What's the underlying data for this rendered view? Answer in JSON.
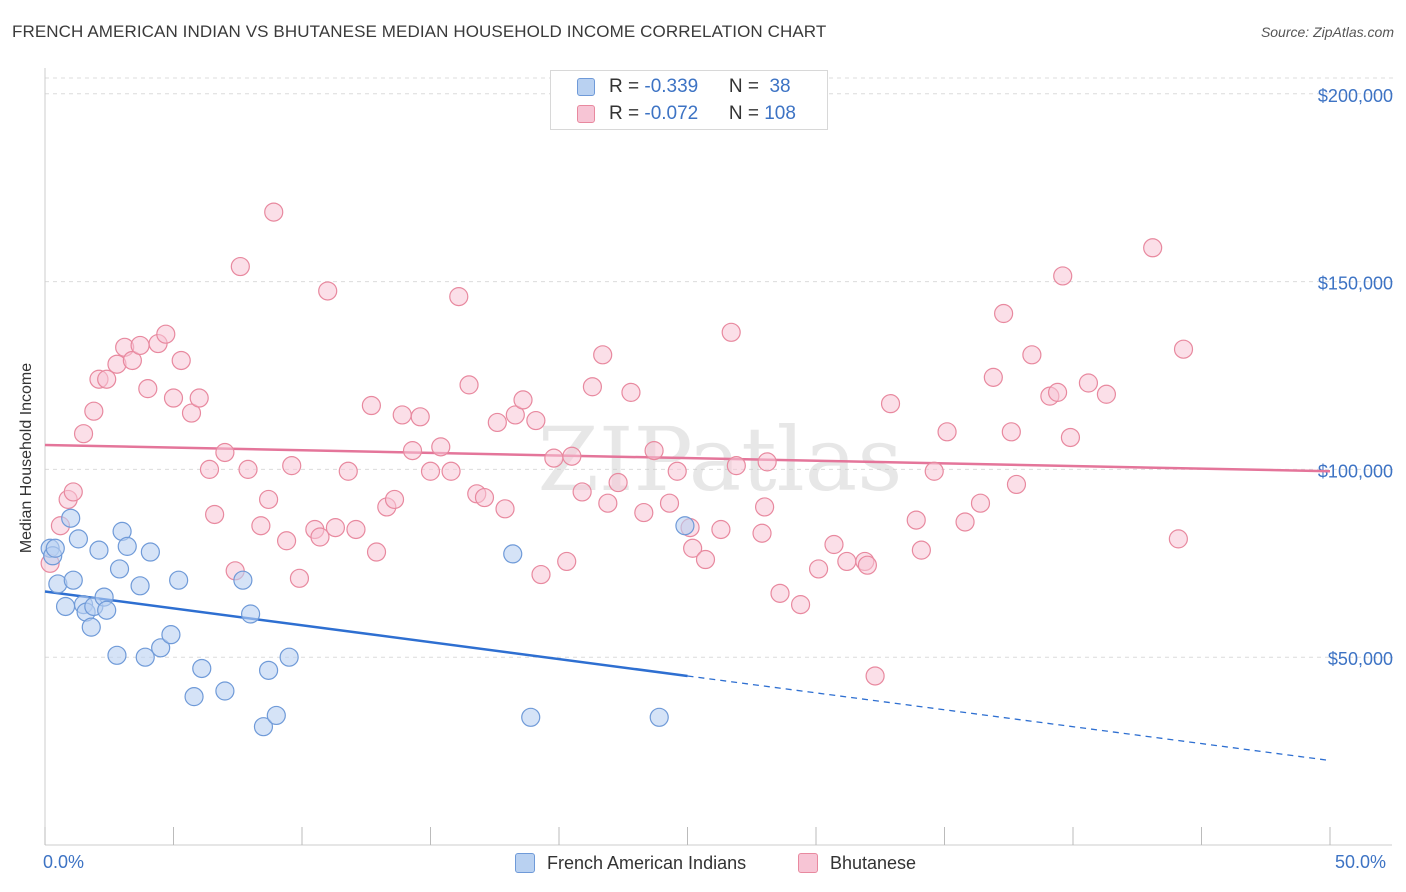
{
  "title": "FRENCH AMERICAN INDIAN VS BHUTANESE MEDIAN HOUSEHOLD INCOME CORRELATION CHART",
  "source": "Source: ZipAtlas.com",
  "watermark": "ZIPatlas",
  "colors": {
    "blue": "#3d73c4",
    "blue_fill": "#b9d1f1",
    "blue_stroke": "#6f9ad8",
    "blue_line": "#2e6fd1",
    "pink_fill": "#f7c5d5",
    "pink_stroke": "#e8899f",
    "pink_line": "#e4759a",
    "grid": "#dcdcdc"
  },
  "legend": {
    "rows": [
      {
        "r_label": "R = ",
        "r_value": "-0.339",
        "n_label": "N = ",
        "n_value": " 38"
      },
      {
        "r_label": "R = ",
        "r_value": "-0.072",
        "n_label": "N = ",
        "n_value": "108"
      }
    ]
  },
  "bottom_legend": {
    "items": [
      "French American Indians",
      "Bhutanese"
    ]
  },
  "chart_data": {
    "type": "scatter",
    "title": "FRENCH AMERICAN INDIAN VS BHUTANESE MEDIAN HOUSEHOLD INCOME CORRELATION CHART",
    "xlabel": "",
    "ylabel": "Median Household Income",
    "xlim": [
      0,
      50
    ],
    "ylim": [
      0,
      205000
    ],
    "x_tick_labels": [
      "0.0%",
      "50.0%"
    ],
    "y_ticks": [
      50000,
      100000,
      150000,
      200000
    ],
    "y_tick_labels": [
      "$50,000",
      "$100,000",
      "$150,000",
      "$200,000"
    ],
    "series": [
      {
        "name": "French American Indians",
        "r": -0.339,
        "n": 38,
        "trend": {
          "x0": 0,
          "y0": 67500,
          "x_solid_end": 25,
          "x1": 50,
          "y1": 22500
        },
        "points": [
          [
            0.2,
            79000
          ],
          [
            0.3,
            77000
          ],
          [
            0.4,
            79000
          ],
          [
            0.5,
            69500
          ],
          [
            0.8,
            63500
          ],
          [
            1.0,
            87000
          ],
          [
            1.1,
            70500
          ],
          [
            1.3,
            81500
          ],
          [
            1.5,
            64000
          ],
          [
            1.6,
            62000
          ],
          [
            1.8,
            58000
          ],
          [
            1.9,
            63500
          ],
          [
            2.1,
            78500
          ],
          [
            2.3,
            66000
          ],
          [
            2.4,
            62500
          ],
          [
            2.8,
            50500
          ],
          [
            2.9,
            73500
          ],
          [
            3.0,
            83500
          ],
          [
            3.2,
            79500
          ],
          [
            3.7,
            69000
          ],
          [
            3.9,
            50000
          ],
          [
            4.1,
            78000
          ],
          [
            4.5,
            52500
          ],
          [
            4.9,
            56000
          ],
          [
            5.2,
            70500
          ],
          [
            5.8,
            39500
          ],
          [
            6.1,
            47000
          ],
          [
            7.0,
            41000
          ],
          [
            7.7,
            70500
          ],
          [
            8.0,
            61500
          ],
          [
            8.7,
            46500
          ],
          [
            8.5,
            31500
          ],
          [
            9.0,
            34500
          ],
          [
            9.5,
            50000
          ],
          [
            18.2,
            77500
          ],
          [
            18.9,
            34000
          ],
          [
            23.9,
            34000
          ],
          [
            24.9,
            85000
          ]
        ]
      },
      {
        "name": "Bhutanese",
        "r": -0.072,
        "n": 108,
        "trend": {
          "x0": 0,
          "y0": 106500,
          "x1": 50,
          "y1": 99500
        },
        "points": [
          [
            0.2,
            75000
          ],
          [
            0.6,
            85000
          ],
          [
            0.9,
            92000
          ],
          [
            1.1,
            94000
          ],
          [
            1.5,
            109500
          ],
          [
            1.9,
            115500
          ],
          [
            2.1,
            124000
          ],
          [
            2.4,
            124000
          ],
          [
            2.8,
            128000
          ],
          [
            3.1,
            132500
          ],
          [
            3.4,
            129000
          ],
          [
            3.7,
            133000
          ],
          [
            4.0,
            121500
          ],
          [
            4.4,
            133500
          ],
          [
            4.7,
            136000
          ],
          [
            5.0,
            119000
          ],
          [
            5.3,
            129000
          ],
          [
            5.7,
            115000
          ],
          [
            6.0,
            119000
          ],
          [
            6.4,
            100000
          ],
          [
            6.6,
            88000
          ],
          [
            7.0,
            104500
          ],
          [
            7.4,
            73000
          ],
          [
            7.6,
            154000
          ],
          [
            7.9,
            100000
          ],
          [
            8.4,
            85000
          ],
          [
            8.7,
            92000
          ],
          [
            8.9,
            168500
          ],
          [
            9.4,
            81000
          ],
          [
            9.6,
            101000
          ],
          [
            9.9,
            71000
          ],
          [
            10.5,
            84000
          ],
          [
            10.7,
            82000
          ],
          [
            11.0,
            147500
          ],
          [
            11.3,
            84500
          ],
          [
            11.8,
            99500
          ],
          [
            12.1,
            84000
          ],
          [
            12.7,
            117000
          ],
          [
            12.9,
            78000
          ],
          [
            13.3,
            90000
          ],
          [
            13.6,
            92000
          ],
          [
            13.9,
            114500
          ],
          [
            14.3,
            105000
          ],
          [
            14.6,
            114000
          ],
          [
            15.0,
            99500
          ],
          [
            15.4,
            106000
          ],
          [
            15.8,
            99500
          ],
          [
            16.1,
            146000
          ],
          [
            16.5,
            122500
          ],
          [
            16.8,
            93500
          ],
          [
            17.1,
            92500
          ],
          [
            17.6,
            112500
          ],
          [
            17.9,
            89500
          ],
          [
            18.3,
            114500
          ],
          [
            18.6,
            118500
          ],
          [
            19.1,
            113000
          ],
          [
            19.3,
            72000
          ],
          [
            19.8,
            103000
          ],
          [
            20.3,
            75500
          ],
          [
            20.5,
            103500
          ],
          [
            20.9,
            94000
          ],
          [
            21.3,
            122000
          ],
          [
            21.7,
            130500
          ],
          [
            21.9,
            91000
          ],
          [
            22.3,
            96500
          ],
          [
            22.8,
            120500
          ],
          [
            23.3,
            88500
          ],
          [
            23.7,
            105000
          ],
          [
            24.3,
            91000
          ],
          [
            24.6,
            99500
          ],
          [
            25.1,
            84500
          ],
          [
            25.2,
            79000
          ],
          [
            25.7,
            76000
          ],
          [
            26.3,
            84000
          ],
          [
            26.7,
            136500
          ],
          [
            26.9,
            101000
          ],
          [
            27.9,
            83000
          ],
          [
            28.0,
            90000
          ],
          [
            28.1,
            102000
          ],
          [
            28.6,
            67000
          ],
          [
            29.4,
            64000
          ],
          [
            30.1,
            73500
          ],
          [
            30.7,
            80000
          ],
          [
            31.2,
            75500
          ],
          [
            31.9,
            75500
          ],
          [
            32.0,
            74500
          ],
          [
            32.3,
            45000
          ],
          [
            32.9,
            117500
          ],
          [
            33.9,
            86500
          ],
          [
            34.1,
            78500
          ],
          [
            34.6,
            99500
          ],
          [
            35.1,
            110000
          ],
          [
            35.8,
            86000
          ],
          [
            36.4,
            91000
          ],
          [
            36.9,
            124500
          ],
          [
            37.3,
            141500
          ],
          [
            37.6,
            110000
          ],
          [
            37.8,
            96000
          ],
          [
            38.4,
            130500
          ],
          [
            39.1,
            119500
          ],
          [
            39.4,
            120500
          ],
          [
            39.6,
            151500
          ],
          [
            39.9,
            108500
          ],
          [
            40.6,
            123000
          ],
          [
            41.3,
            120000
          ],
          [
            43.1,
            159000
          ],
          [
            44.1,
            81500
          ],
          [
            44.3,
            132000
          ]
        ]
      }
    ]
  }
}
